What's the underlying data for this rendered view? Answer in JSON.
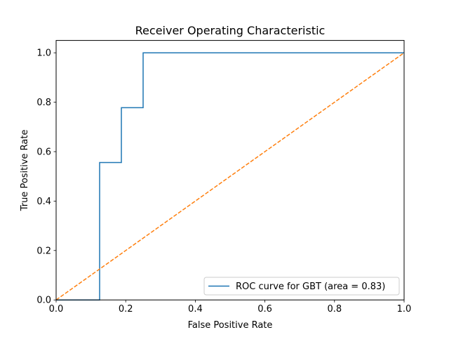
{
  "chart_data": {
    "type": "line",
    "title": "Receiver Operating Characteristic",
    "xlabel": "False Positive Rate",
    "ylabel": "True Positive Rate",
    "xlim": [
      0.0,
      1.0
    ],
    "ylim": [
      0.0,
      1.05
    ],
    "xticks": [
      0.0,
      0.2,
      0.4,
      0.6,
      0.8,
      1.0
    ],
    "xtick_labels": [
      "0.0",
      "0.2",
      "0.4",
      "0.6",
      "0.8",
      "1.0"
    ],
    "yticks": [
      0.0,
      0.2,
      0.4,
      0.6,
      0.8,
      1.0
    ],
    "ytick_labels": [
      "0.0",
      "0.2",
      "0.4",
      "0.6",
      "0.8",
      "1.0"
    ],
    "grid": false,
    "legend_position": "lower-right",
    "series": [
      {
        "name": "ROC curve for GBT (area = 0.83)",
        "color": "#1f77b4",
        "line_style": "solid",
        "x": [
          0.0,
          0.125,
          0.125,
          0.1875,
          0.1875,
          0.25,
          0.25,
          1.0
        ],
        "y": [
          0.0,
          0.0,
          0.556,
          0.556,
          0.778,
          0.778,
          1.0,
          1.0
        ]
      },
      {
        "color": "#ff7f0e",
        "line_style": "dashed",
        "x": [
          0.0,
          1.0
        ],
        "y": [
          0.0,
          1.0
        ]
      }
    ]
  }
}
